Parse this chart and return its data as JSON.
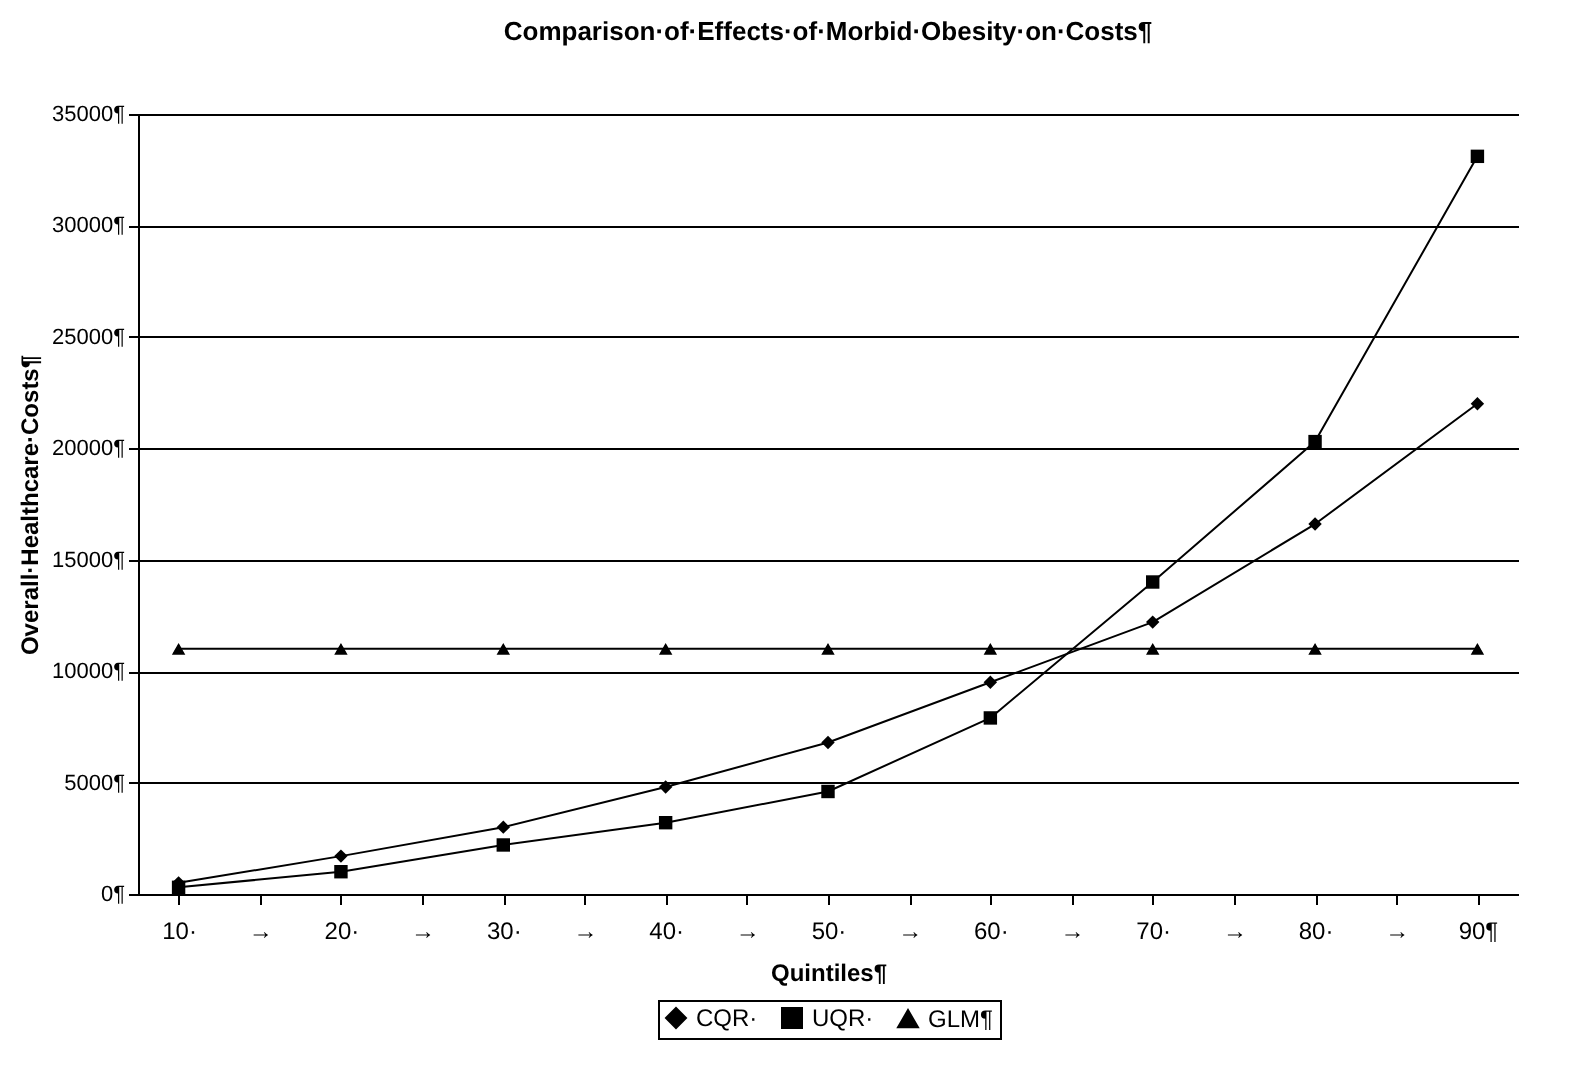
{
  "chart_data": {
    "type": "line",
    "title": "Comparison·of·Effects·of·Morbid·Obesity·on·Costs¶",
    "xlabel": "Quintiles¶",
    "ylabel": "Overall·Healthcare·Costs¶",
    "categories": [
      "10·",
      "→",
      "20·",
      "→",
      "30·",
      "→",
      "40·",
      "→",
      "50·",
      "→",
      "60·",
      "→",
      "70·",
      "→",
      "80·",
      "→",
      "90¶"
    ],
    "series": [
      {
        "name": "CQR·",
        "color": "#000000",
        "marker": "diamond",
        "values": [
          500,
          null,
          1700,
          null,
          3000,
          null,
          4800,
          null,
          6800,
          null,
          9500,
          null,
          12200,
          null,
          16600,
          null,
          22000
        ]
      },
      {
        "name": "UQR·",
        "color": "#000000",
        "marker": "square",
        "values": [
          300,
          null,
          1000,
          null,
          2200,
          null,
          3200,
          null,
          4600,
          null,
          7900,
          null,
          14000,
          null,
          20300,
          null,
          33100
        ]
      },
      {
        "name": "GLM¶",
        "color": "#000000",
        "marker": "triangle",
        "values": [
          11000,
          null,
          11000,
          null,
          11000,
          null,
          11000,
          null,
          11000,
          null,
          11000,
          null,
          11000,
          null,
          11000,
          null,
          11000
        ]
      }
    ],
    "ylim": [
      0,
      35000
    ],
    "yticks": [
      {
        "value": 0,
        "label": "0¶"
      },
      {
        "value": 5000,
        "label": "5000¶"
      },
      {
        "value": 10000,
        "label": "10000¶"
      },
      {
        "value": 15000,
        "label": "15000¶"
      },
      {
        "value": 20000,
        "label": "20000¶"
      },
      {
        "value": 25000,
        "label": "25000¶"
      },
      {
        "value": 30000,
        "label": "30000¶"
      },
      {
        "value": 35000,
        "label": "35000¶"
      }
    ],
    "grid": "y",
    "legend": "bottom",
    "line_style": "solid"
  }
}
